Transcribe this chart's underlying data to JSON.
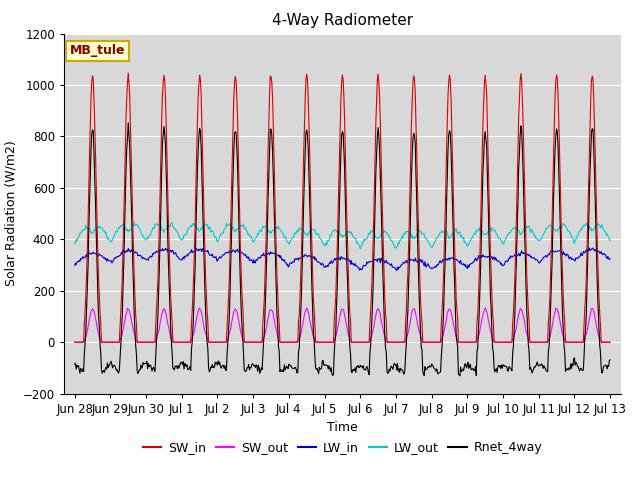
{
  "title": "4-Way Radiometer",
  "xlabel": "Time",
  "ylabel": "Solar Radiation (W/m2)",
  "ylim": [
    -200,
    1200
  ],
  "station_label": "MB_tule",
  "x_ticks_labels": [
    "Jun 28",
    "Jun 29",
    "Jun 30",
    "Jul 1",
    "Jul 2",
    "Jul 3",
    "Jul 4",
    "Jul 5",
    "Jul 6",
    "Jul 7",
    "Jul 8",
    "Jul 9",
    "Jul 10",
    "Jul 11",
    "Jul 12",
    "Jul 13"
  ],
  "x_ticks_pos": [
    0,
    1,
    2,
    3,
    4,
    5,
    6,
    7,
    8,
    9,
    10,
    11,
    12,
    13,
    14,
    15
  ],
  "colors": {
    "SW_in": "#dd0000",
    "SW_out": "#ff00ff",
    "LW_in": "#0000dd",
    "LW_out": "#00cccc",
    "Rnet_4way": "#000000"
  },
  "background_color": "#ffffff",
  "plot_bg_color": "#d8d8d8",
  "grid_color": "#ffffff",
  "figsize": [
    6.4,
    4.8
  ],
  "dpi": 100
}
